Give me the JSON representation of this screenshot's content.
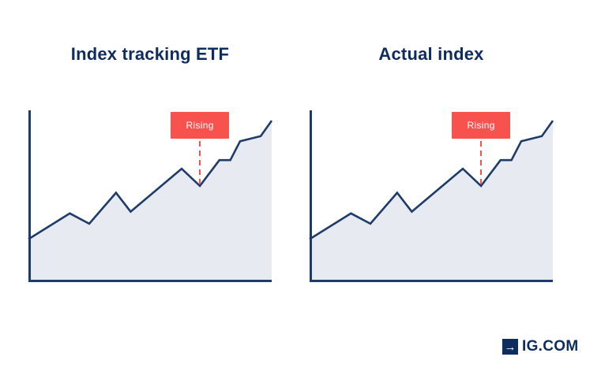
{
  "colors": {
    "background": "#ffffff",
    "navy_dark": "#0e2c5e",
    "navy_line": "#1e3c6a",
    "area_fill": "#e8eaf1",
    "annotation_red": "#f7524d",
    "annotation_text": "#ffffff"
  },
  "chart_data": [
    {
      "type": "area",
      "title": "Index tracking ETF",
      "x": [
        0,
        17,
        25,
        36,
        42,
        63,
        70.5,
        78.5,
        83,
        87,
        95.5,
        100
      ],
      "y": [
        25,
        40,
        34,
        52,
        41,
        66,
        56,
        71,
        71,
        82,
        85,
        94
      ],
      "xlabel": "",
      "ylabel": "",
      "xlim": [
        0,
        100
      ],
      "ylim": [
        0,
        100
      ],
      "grid": "off",
      "axis_ticks": "none",
      "legend": "none",
      "annotation": {
        "label": "Rising",
        "point_index": 6
      }
    },
    {
      "type": "area",
      "title": "Actual index",
      "x": [
        0,
        17,
        25,
        36,
        42,
        63,
        70.5,
        78.5,
        83,
        87,
        95.5,
        100
      ],
      "y": [
        25,
        40,
        34,
        52,
        41,
        66,
        56,
        71,
        71,
        82,
        85,
        94
      ],
      "xlabel": "",
      "ylabel": "",
      "xlim": [
        0,
        100
      ],
      "ylim": [
        0,
        100
      ],
      "grid": "off",
      "axis_ticks": "none",
      "legend": "none",
      "annotation": {
        "label": "Rising",
        "point_index": 6
      }
    }
  ],
  "logo": {
    "arrow_icon": "→",
    "text": "IG.COM"
  }
}
